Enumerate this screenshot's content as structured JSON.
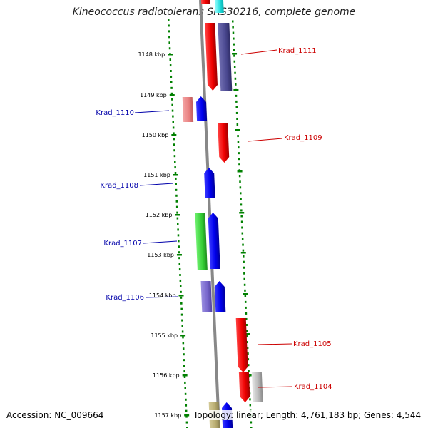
{
  "title": "Kineococcus radiotolerans SRS30216, complete genome",
  "footer": {
    "accession": "Accession: NC_009664",
    "stats": "Topology: linear; Length: 4,761,183 bp; Genes: 4,544"
  },
  "scale_labels": [
    "1148 kbp",
    "1149 kbp",
    "1150 kbp",
    "1151 kbp",
    "1152 kbp",
    "1153 kbp",
    "1154 kbp",
    "1155 kbp",
    "1156 kbp",
    "1157 kbp"
  ],
  "genes": [
    {
      "name": "Krad_1111",
      "strand": "reverse"
    },
    {
      "name": "Krad_1110",
      "strand": "forward"
    },
    {
      "name": "Krad_1109",
      "strand": "reverse"
    },
    {
      "name": "Krad_1108",
      "strand": "forward"
    },
    {
      "name": "Krad_1107",
      "strand": "forward"
    },
    {
      "name": "Krad_1106",
      "strand": "forward"
    },
    {
      "name": "Krad_1105",
      "strand": "reverse"
    },
    {
      "name": "Krad_1104",
      "strand": "reverse"
    }
  ],
  "colors": {
    "forward_gene": "#0000ee",
    "reverse_gene": "#ee0000",
    "forward_label": "#0000aa",
    "reverse_label": "#cc0000",
    "tick": "#008000",
    "backbone": "#888888",
    "feature_navy": "#4a4890",
    "feature_pink": "#e88080",
    "feature_green": "#33cc33",
    "feature_purple": "#7766cc",
    "feature_gray": "#b8b8b8",
    "feature_olive": "#b8ac70",
    "feature_cyan": "#22dddd"
  }
}
